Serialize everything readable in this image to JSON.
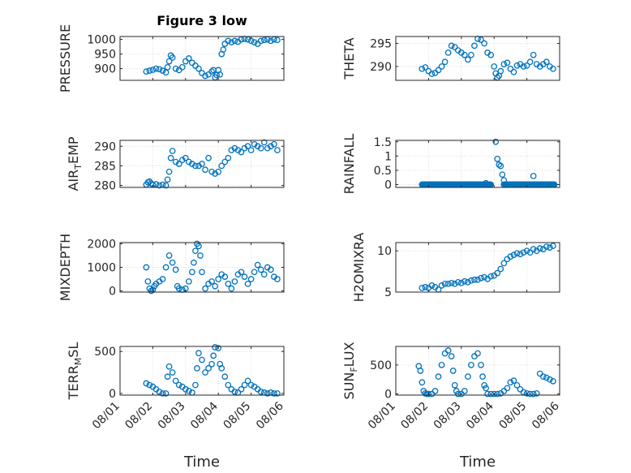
{
  "figure": {
    "background": "#ffffff",
    "marker_color": "#0072BD",
    "axis_color": "#262626",
    "grid_color": "#dcdcdc"
  },
  "chart_data": [
    {
      "type": "scatter",
      "title": "Figure 3 low",
      "ylabel": "PRESSURE",
      "xlabel": "",
      "xlim": [
        1,
        6
      ],
      "ylim": [
        860,
        1010
      ],
      "yticks": [
        900,
        950,
        1000
      ],
      "ytick_labels": [
        "900",
        "950",
        "1000"
      ],
      "xticks": [
        1,
        2,
        3,
        4,
        5,
        6
      ],
      "xtick_labels": [],
      "grid": true,
      "series": [
        {
          "x": [
            1.8,
            1.9,
            2.0,
            2.1,
            2.2,
            2.3,
            2.4,
            2.45,
            2.5,
            2.55,
            2.6,
            2.7,
            2.8,
            2.9,
            3.0,
            3.1,
            3.2,
            3.3,
            3.4,
            3.5,
            3.6,
            3.7,
            3.8,
            3.85,
            3.9,
            3.95,
            4.0,
            4.05,
            4.1,
            4.15,
            4.2,
            4.3,
            4.4,
            4.5,
            4.6,
            4.7,
            4.8,
            4.9,
            5.0,
            5.1,
            5.2,
            5.3,
            5.4,
            5.5,
            5.6,
            5.7,
            5.8
          ],
          "y": [
            890,
            893,
            896,
            900,
            898,
            893,
            887,
            905,
            925,
            945,
            938,
            900,
            895,
            905,
            925,
            935,
            920,
            910,
            900,
            885,
            875,
            880,
            890,
            895,
            870,
            878,
            895,
            880,
            950,
            965,
            985,
            995,
            990,
            995,
            992,
            1000,
            1002,
            1000,
            995,
            990,
            985,
            995,
            998,
            1000,
            995,
            1000,
            998
          ]
        }
      ]
    },
    {
      "type": "scatter",
      "title": "",
      "ylabel": "THETA",
      "xlabel": "",
      "xlim": [
        1,
        6
      ],
      "ylim": [
        287,
        296.5
      ],
      "yticks": [
        290,
        295
      ],
      "ytick_labels": [
        "290",
        "295"
      ],
      "xticks": [
        1,
        2,
        3,
        4,
        5,
        6
      ],
      "xtick_labels": [],
      "grid": true,
      "series": [
        {
          "x": [
            1.8,
            1.9,
            2.0,
            2.1,
            2.2,
            2.3,
            2.4,
            2.5,
            2.6,
            2.7,
            2.8,
            2.9,
            3.0,
            3.1,
            3.2,
            3.3,
            3.4,
            3.5,
            3.6,
            3.7,
            3.8,
            3.9,
            4.0,
            4.05,
            4.1,
            4.15,
            4.2,
            4.3,
            4.4,
            4.5,
            4.6,
            4.7,
            4.8,
            4.9,
            5.0,
            5.1,
            5.2,
            5.3,
            5.4,
            5.5,
            5.6,
            5.7,
            5.8
          ],
          "y": [
            289.5,
            289.8,
            289.0,
            288.4,
            288.6,
            289.2,
            290.0,
            291.0,
            293.0,
            294.5,
            294.2,
            293.5,
            293.0,
            292.5,
            291.5,
            292.5,
            294.5,
            296.0,
            295.8,
            295.0,
            293.0,
            292.5,
            290.0,
            288.5,
            287.6,
            288.0,
            289.0,
            290.5,
            290.8,
            289.5,
            288.8,
            290.2,
            290.5,
            290.0,
            290.2,
            291.0,
            292.5,
            290.5,
            290.0,
            290.5,
            291.0,
            290.0,
            289.5
          ]
        }
      ]
    },
    {
      "type": "scatter",
      "title": "",
      "ylabel": "AIR_TEMP",
      "xlabel": "",
      "xlim": [
        1,
        6
      ],
      "ylim": [
        279.5,
        291.5
      ],
      "yticks": [
        280,
        285,
        290
      ],
      "ytick_labels": [
        "280",
        "285",
        "290"
      ],
      "xticks": [
        1,
        2,
        3,
        4,
        5,
        6
      ],
      "xtick_labels": [],
      "grid": true,
      "series": [
        {
          "x": [
            1.8,
            1.85,
            1.9,
            1.95,
            2.0,
            2.1,
            2.2,
            2.3,
            2.4,
            2.45,
            2.5,
            2.55,
            2.6,
            2.7,
            2.8,
            2.9,
            3.0,
            3.1,
            3.2,
            3.3,
            3.4,
            3.5,
            3.6,
            3.7,
            3.8,
            3.9,
            4.0,
            4.1,
            4.2,
            4.3,
            4.4,
            4.5,
            4.6,
            4.7,
            4.8,
            4.9,
            5.0,
            5.1,
            5.2,
            5.3,
            5.4,
            5.5,
            5.6,
            5.7,
            5.8
          ],
          "y": [
            280.2,
            280.8,
            281.0,
            280.5,
            280.2,
            280.3,
            280.0,
            280.2,
            280.0,
            281.5,
            283.5,
            287.0,
            288.8,
            286.0,
            285.5,
            286.5,
            287.0,
            286.0,
            285.5,
            285.0,
            285.0,
            285.5,
            284.0,
            287.0,
            283.5,
            283.0,
            283.5,
            285.0,
            286.0,
            287.0,
            289.0,
            289.5,
            289.0,
            288.5,
            289.5,
            290.0,
            289.0,
            290.5,
            290.0,
            289.5,
            291.0,
            289.5,
            290.0,
            290.5,
            289.0
          ]
        }
      ]
    },
    {
      "type": "scatter",
      "title": "",
      "ylabel": "RAINFALL",
      "xlabel": "",
      "xlim": [
        1,
        6
      ],
      "ylim": [
        -0.1,
        1.55
      ],
      "yticks": [
        0,
        0.5,
        1,
        1.5
      ],
      "ytick_labels": [
        "0",
        "0.5",
        "1",
        "1.5"
      ],
      "xticks": [
        1,
        2,
        3,
        4,
        5,
        6
      ],
      "xtick_labels": [],
      "grid": true,
      "baseline_segments": [
        [
          1.8,
          3.9
        ],
        [
          4.3,
          5.85
        ]
      ],
      "baseline_value": 0,
      "series": [
        {
          "x": [
            3.75,
            4.05,
            4.1,
            4.15,
            4.2,
            4.25,
            4.3,
            5.2
          ],
          "y": [
            0.05,
            1.5,
            0.9,
            0.7,
            0.65,
            0.35,
            0.15,
            0.3
          ]
        }
      ]
    },
    {
      "type": "scatter",
      "title": "",
      "ylabel": "MIXDEPTH",
      "xlabel": "",
      "xlim": [
        1,
        6
      ],
      "ylim": [
        -50,
        2050
      ],
      "yticks": [
        0,
        1000,
        2000
      ],
      "ytick_labels": [
        "0",
        "1000",
        "2000"
      ],
      "xticks": [
        1,
        2,
        3,
        4,
        5,
        6
      ],
      "xtick_labels": [],
      "grid": true,
      "series": [
        {
          "x": [
            1.8,
            1.85,
            1.9,
            1.95,
            2.0,
            2.05,
            2.1,
            2.2,
            2.3,
            2.4,
            2.5,
            2.6,
            2.7,
            2.75,
            2.8,
            2.9,
            3.0,
            3.1,
            3.2,
            3.25,
            3.3,
            3.35,
            3.4,
            3.45,
            3.5,
            3.6,
            3.7,
            3.8,
            3.9,
            4.0,
            4.1,
            4.2,
            4.3,
            4.4,
            4.5,
            4.6,
            4.7,
            4.8,
            4.9,
            5.0,
            5.1,
            5.2,
            5.3,
            5.4,
            5.5,
            5.6,
            5.7,
            5.8
          ],
          "y": [
            1000,
            400,
            100,
            0,
            50,
            200,
            300,
            400,
            500,
            1000,
            1500,
            1200,
            900,
            200,
            100,
            50,
            100,
            400,
            800,
            1200,
            1700,
            2000,
            1900,
            1500,
            800,
            100,
            300,
            400,
            200,
            500,
            700,
            600,
            300,
            100,
            400,
            700,
            800,
            600,
            300,
            500,
            800,
            1100,
            900,
            700,
            1000,
            900,
            600,
            500
          ]
        }
      ]
    },
    {
      "type": "scatter",
      "title": "",
      "ylabel": "H2OMIXRA",
      "xlabel": "",
      "xlim": [
        1,
        6
      ],
      "ylim": [
        5,
        11
      ],
      "yticks": [
        5,
        10
      ],
      "ytick_labels": [
        "5",
        "10"
      ],
      "xticks": [
        1,
        2,
        3,
        4,
        5,
        6
      ],
      "xtick_labels": [],
      "grid": true,
      "series": [
        {
          "x": [
            1.8,
            1.9,
            2.0,
            2.1,
            2.2,
            2.3,
            2.4,
            2.5,
            2.6,
            2.7,
            2.8,
            2.9,
            3.0,
            3.1,
            3.2,
            3.3,
            3.4,
            3.5,
            3.6,
            3.7,
            3.8,
            3.9,
            4.0,
            4.1,
            4.2,
            4.3,
            4.4,
            4.5,
            4.6,
            4.7,
            4.8,
            4.9,
            5.0,
            5.1,
            5.2,
            5.3,
            5.4,
            5.5,
            5.6,
            5.7,
            5.8
          ],
          "y": [
            5.5,
            5.6,
            5.5,
            5.8,
            5.6,
            5.3,
            5.8,
            6.0,
            6.0,
            6.1,
            6.0,
            6.2,
            6.1,
            6.3,
            6.2,
            6.4,
            6.5,
            6.5,
            6.7,
            6.8,
            6.6,
            6.9,
            7.0,
            7.3,
            7.8,
            8.5,
            9.0,
            9.3,
            9.5,
            9.7,
            9.6,
            9.8,
            10.0,
            9.8,
            10.2,
            10.0,
            10.3,
            10.2,
            10.5,
            10.4,
            10.6
          ]
        }
      ]
    },
    {
      "type": "scatter",
      "title": "",
      "ylabel": "TERR_MSL",
      "xlabel": "Time",
      "xlim": [
        1,
        6
      ],
      "ylim": [
        -20,
        560
      ],
      "yticks": [
        0,
        500
      ],
      "ytick_labels": [
        "0",
        "500"
      ],
      "xticks": [
        1,
        2,
        3,
        4,
        5,
        6
      ],
      "xtick_labels": [
        "08/01",
        "08/02",
        "08/03",
        "08/04",
        "08/05",
        "08/06"
      ],
      "grid": true,
      "series": [
        {
          "x": [
            1.8,
            1.9,
            2.0,
            2.1,
            2.2,
            2.3,
            2.4,
            2.45,
            2.5,
            2.6,
            2.7,
            2.8,
            2.9,
            3.0,
            3.1,
            3.2,
            3.3,
            3.35,
            3.4,
            3.5,
            3.6,
            3.7,
            3.8,
            3.85,
            3.9,
            4.0,
            4.05,
            4.1,
            4.2,
            4.3,
            4.4,
            4.5,
            4.6,
            4.7,
            4.8,
            4.9,
            5.0,
            5.1,
            5.2,
            5.3,
            5.4,
            5.5,
            5.6,
            5.7,
            5.8
          ],
          "y": [
            120,
            100,
            80,
            50,
            20,
            0,
            0,
            200,
            320,
            250,
            150,
            100,
            80,
            50,
            30,
            10,
            100,
            300,
            480,
            400,
            250,
            300,
            350,
            450,
            550,
            540,
            350,
            300,
            200,
            100,
            50,
            20,
            10,
            50,
            100,
            150,
            100,
            80,
            50,
            20,
            10,
            0,
            10,
            0,
            0
          ]
        }
      ]
    },
    {
      "type": "scatter",
      "title": "",
      "ylabel": "SUN_FLUX",
      "xlabel": "Time",
      "xlim": [
        1,
        6
      ],
      "ylim": [
        -20,
        820
      ],
      "yticks": [
        0,
        500
      ],
      "ytick_labels": [
        "0",
        "500"
      ],
      "xticks": [
        1,
        2,
        3,
        4,
        5,
        6
      ],
      "xtick_labels": [
        "08/01",
        "08/02",
        "08/03",
        "08/04",
        "08/05",
        "08/06"
      ],
      "grid": true,
      "series": [
        {
          "x": [
            1.7,
            1.75,
            1.8,
            1.85,
            1.9,
            1.95,
            2.0,
            2.1,
            2.2,
            2.3,
            2.4,
            2.5,
            2.6,
            2.7,
            2.75,
            2.8,
            2.85,
            2.9,
            3.0,
            3.1,
            3.2,
            3.3,
            3.4,
            3.5,
            3.6,
            3.65,
            3.7,
            3.75,
            3.8,
            3.9,
            4.0,
            4.1,
            4.2,
            4.3,
            4.4,
            4.5,
            4.6,
            4.7,
            4.8,
            4.9,
            5.0,
            5.1,
            5.2,
            5.3,
            5.4,
            5.5,
            5.6,
            5.7,
            5.8
          ],
          "y": [
            480,
            400,
            200,
            50,
            10,
            0,
            0,
            0,
            50,
            300,
            500,
            700,
            750,
            650,
            400,
            150,
            50,
            0,
            0,
            50,
            300,
            500,
            650,
            700,
            500,
            300,
            150,
            100,
            0,
            0,
            0,
            0,
            10,
            50,
            100,
            200,
            230,
            150,
            80,
            30,
            10,
            0,
            0,
            10,
            350,
            300,
            280,
            250,
            220
          ]
        }
      ]
    }
  ]
}
